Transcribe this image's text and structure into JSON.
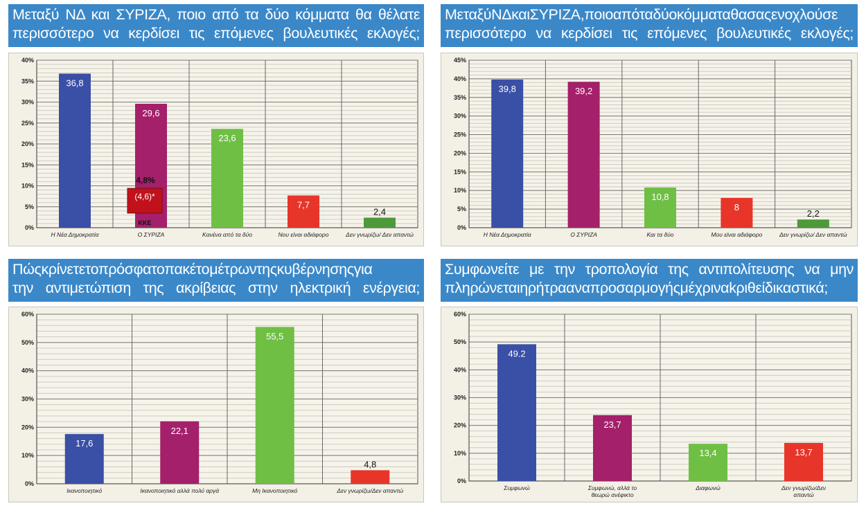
{
  "colors": {
    "blue": "#3a4fa6",
    "magenta": "#a4206a",
    "green": "#6fbf45",
    "red": "#e8352a",
    "darkgreen": "#4c9a3a",
    "kke_red": "#c1121c",
    "title_bg": "#3b88c9"
  },
  "charts": [
    {
      "title_lines": [
        "Μεταξύ ΝΔ και ΣΥΡΙΖΑ, ποιο από τα δύο κόμματα θα θέλατε",
        "περισσότερο να κερδίσει τις επόμενες βουλευτικές εκλογές;"
      ],
      "chart_data": {
        "type": "bar",
        "categories": [
          "Η Νέα Δημοκρατία",
          "Ο ΣΥΡΙΖΑ",
          "Κανένα  από τα δύο",
          "Νου είναι  αδιάφορο",
          "Δεν γνωρίζω/ Δεν απαντώ"
        ],
        "values": [
          36.8,
          29.6,
          23.6,
          7.7,
          2.4
        ],
        "value_labels": [
          "36,8",
          "29,6",
          "23,6",
          "7,7",
          "2,4"
        ],
        "bar_colors": [
          "#3a4fa6",
          "#a4206a",
          "#6fbf45",
          "#e8352a",
          "#4c9a3a"
        ],
        "ylim": [
          0,
          40
        ],
        "yticks": [
          0,
          5,
          10,
          15,
          20,
          25,
          30,
          35,
          40
        ],
        "ytick_labels": [
          "0%",
          "5%",
          "10%",
          "15%",
          "20%",
          "25%",
          "30%",
          "35%",
          "40%"
        ],
        "grid": true,
        "annotation": {
          "value": "4,8%",
          "box_text": "(4,6)*",
          "label": "ΚΚΕ",
          "category_index": 1
        }
      }
    },
    {
      "title_lines": [
        "ΜεταξύΝΔκαιΣΥΡΙΖΑ,ποιοαπόταδύοκόμματαθασαςενοχλούσε",
        "περισσότερο να κερδίσει τις επόμενες βουλευτικές εκλογές;"
      ],
      "chart_data": {
        "type": "bar",
        "categories": [
          "Η Νέα Δημοκρατία",
          "Ο ΣΥΡΙΖΑ",
          "Και τα δύο",
          "Μου είναι  αδιάφορο",
          "Δεν γνωρίζω/ Δεν απαντώ"
        ],
        "values": [
          39.8,
          39.2,
          10.8,
          8,
          2.2
        ],
        "value_labels": [
          "39,8",
          "39,2",
          "10,8",
          "8",
          "2,2"
        ],
        "bar_colors": [
          "#3a4fa6",
          "#a4206a",
          "#6fbf45",
          "#e8352a",
          "#4c9a3a"
        ],
        "ylim": [
          0,
          45
        ],
        "yticks": [
          0,
          5,
          10,
          15,
          20,
          25,
          30,
          35,
          40,
          45
        ],
        "ytick_labels": [
          "0%",
          "5%",
          "10%",
          "15%",
          "20%",
          "25%",
          "30%",
          "35%",
          "40%",
          "45%"
        ],
        "grid": true
      }
    },
    {
      "title_lines": [
        "Πώςκρίνετετοπρόσφατοπακέτομέτρωντηςκυβέρνησηςγια",
        "την αντιμετώπιση της ακρίβειας στην ηλεκτρική ενέργεια;"
      ],
      "chart_data": {
        "type": "bar",
        "categories": [
          "Ικανοποιητικό",
          "Ικανοποιητικό  αλλά πολύ αργά",
          "Μη Ικανοποιητικό",
          "Δεν γνωρίζω/Δεν απαντώ"
        ],
        "values": [
          17.6,
          22.1,
          55.5,
          4.8
        ],
        "value_labels": [
          "17,6",
          "22,1",
          "55,5",
          "4,8"
        ],
        "bar_colors": [
          "#3a4fa6",
          "#a4206a",
          "#6fbf45",
          "#e8352a"
        ],
        "ylim": [
          0,
          60
        ],
        "yticks": [
          0,
          10,
          20,
          30,
          40,
          50,
          60
        ],
        "ytick_labels": [
          "0%",
          "10%",
          "20%",
          "30%",
          "40%",
          "50%",
          "60%"
        ],
        "grid": true
      }
    },
    {
      "title_lines": [
        "Συμφωνείτε με την τροπολογία της αντιπολίτευσης να μην",
        "πληρώνεταιηρήτρααναπροσαρμογήςμέχριναkριθείδικαστικά;"
      ],
      "chart_data": {
        "type": "bar",
        "categories": [
          "Συμφωνώ",
          "Συμφωνώ, αλλά το θεωρώ ανέφικτο",
          "Διαφωνώ",
          "Δεν γνωρίζω/Δεν απαντώ"
        ],
        "values": [
          49.2,
          23.7,
          13.4,
          13.7
        ],
        "value_labels": [
          "49.2",
          "23,7",
          "13,4",
          "13,7"
        ],
        "bar_colors": [
          "#3a4fa6",
          "#a4206a",
          "#6fbf45",
          "#e8352a"
        ],
        "ylim": [
          0,
          60
        ],
        "yticks": [
          0,
          10,
          20,
          30,
          40,
          50,
          60
        ],
        "ytick_labels": [
          "0%",
          "10%",
          "20%",
          "30%",
          "40%",
          "50%",
          "60%"
        ],
        "grid": true
      }
    }
  ]
}
